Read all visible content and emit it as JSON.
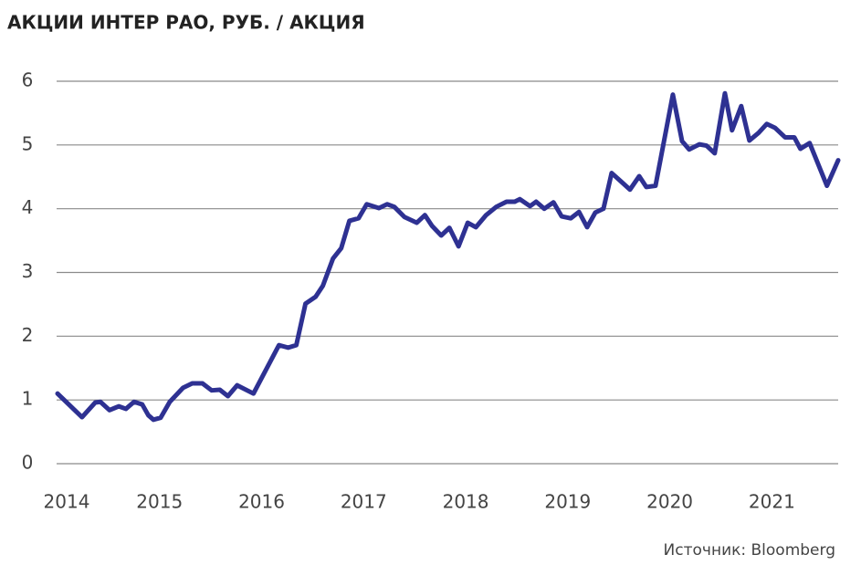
{
  "chart_data": {
    "type": "line",
    "title": "АКЦИИ ИНТЕР РАО, РУБ. / АКЦИЯ",
    "source": "Источник: Bloomberg",
    "x": [
      2014.0,
      2014.24,
      2014.37,
      2014.42,
      2014.51,
      2014.6,
      2014.67,
      2014.75,
      2014.83,
      2014.89,
      2014.94,
      2015.01,
      2015.1,
      2015.23,
      2015.32,
      2015.42,
      2015.51,
      2015.59,
      2015.67,
      2015.76,
      2015.92,
      2016.17,
      2016.26,
      2016.34,
      2016.43,
      2016.53,
      2016.6,
      2016.7,
      2016.78,
      2016.86,
      2016.95,
      2017.03,
      2017.15,
      2017.23,
      2017.3,
      2017.4,
      2017.52,
      2017.6,
      2017.67,
      2017.76,
      2017.84,
      2017.93,
      2018.02,
      2018.1,
      2018.2,
      2018.3,
      2018.4,
      2018.48,
      2018.53,
      2018.63,
      2018.69,
      2018.77,
      2018.86,
      2018.94,
      2019.03,
      2019.11,
      2019.19,
      2019.27,
      2019.35,
      2019.43,
      2019.52,
      2019.61,
      2019.7,
      2019.77,
      2019.86,
      2020.03,
      2020.12,
      2020.19,
      2020.29,
      2020.36,
      2020.44,
      2020.54,
      2020.61,
      2020.7,
      2020.78,
      2020.87,
      2020.95,
      2021.03,
      2021.13,
      2021.22,
      2021.28,
      2021.37,
      2021.54,
      2021.65
    ],
    "series": [
      {
        "name": "Интер РАО",
        "color": "#2e3192",
        "values": [
          1.1,
          0.73,
          0.96,
          0.97,
          0.84,
          0.9,
          0.86,
          0.97,
          0.93,
          0.76,
          0.69,
          0.72,
          0.97,
          1.19,
          1.26,
          1.26,
          1.15,
          1.16,
          1.06,
          1.23,
          1.1,
          1.86,
          1.82,
          1.86,
          2.51,
          2.62,
          2.79,
          3.22,
          3.38,
          3.81,
          3.85,
          4.07,
          4.01,
          4.07,
          4.03,
          3.87,
          3.78,
          3.9,
          3.73,
          3.58,
          3.7,
          3.41,
          3.78,
          3.71,
          3.9,
          4.03,
          4.11,
          4.11,
          4.15,
          4.04,
          4.11,
          4.0,
          4.1,
          3.88,
          3.85,
          3.95,
          3.71,
          3.94,
          4.0,
          4.56,
          4.43,
          4.3,
          4.51,
          4.34,
          4.36,
          5.79,
          5.06,
          4.93,
          5.01,
          4.99,
          4.87,
          5.81,
          5.23,
          5.61,
          5.07,
          5.19,
          5.33,
          5.27,
          5.12,
          5.12,
          4.94,
          5.03,
          4.36,
          4.76
        ]
      }
    ],
    "xlim": [
      2014,
      2021.65
    ],
    "xticks": [
      2014,
      2015,
      2016,
      2017,
      2018,
      2019,
      2020,
      2021
    ],
    "ylim": [
      0,
      6
    ],
    "yticks": [
      0,
      1,
      2,
      3,
      4,
      5,
      6
    ],
    "grid": true
  }
}
